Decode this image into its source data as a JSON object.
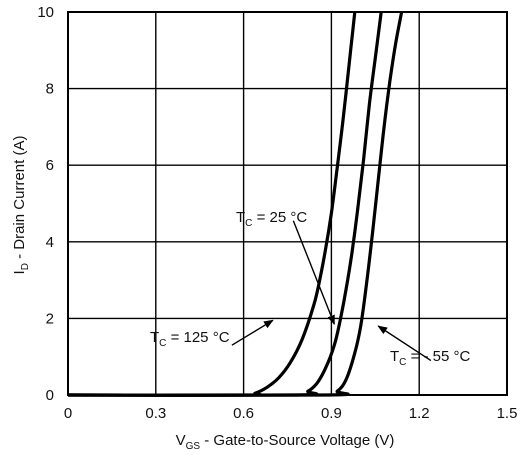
{
  "chart_data": {
    "type": "line",
    "xlabel_main": "V",
    "xlabel_sub": "GS",
    "xlabel_rest": " - Gate-to-Source Voltage (V)",
    "ylabel_main": "I",
    "ylabel_sub": "D",
    "ylabel_rest": " - Drain Current (A)",
    "xlim": [
      0,
      1.5
    ],
    "ylim": [
      0,
      10
    ],
    "x_ticks": [
      0,
      0.3,
      0.6,
      0.9,
      1.2,
      1.5
    ],
    "x_tick_labels": [
      "0",
      "0.3",
      "0.6",
      "0.9",
      "1.2",
      "1.5"
    ],
    "y_ticks": [
      0,
      2,
      4,
      6,
      8,
      10
    ],
    "y_tick_labels": [
      "0",
      "2",
      "4",
      "6",
      "8",
      "10"
    ],
    "grid": true,
    "series": [
      {
        "name": "TC = 125 °C",
        "x": [
          0,
          0.6,
          0.64,
          0.68,
          0.72,
          0.76,
          0.8,
          0.84,
          0.86,
          0.88,
          0.9,
          0.92,
          0.94,
          0.96,
          0.97,
          0.98
        ],
        "y": [
          0,
          0,
          0.05,
          0.2,
          0.45,
          0.85,
          1.45,
          2.35,
          3.0,
          3.8,
          4.75,
          5.95,
          7.2,
          8.6,
          9.3,
          10
        ]
      },
      {
        "name": "TC = 25 °C",
        "x": [
          0,
          0.78,
          0.82,
          0.85,
          0.88,
          0.91,
          0.93,
          0.95,
          0.97,
          0.99,
          1.01,
          1.03,
          1.05,
          1.07
        ],
        "y": [
          0,
          0,
          0.1,
          0.3,
          0.7,
          1.3,
          1.95,
          2.75,
          3.7,
          4.85,
          6.15,
          7.6,
          8.8,
          10
        ]
      },
      {
        "name": "TC = - 55 °C",
        "x": [
          0,
          0.88,
          0.92,
          0.95,
          0.98,
          1.0,
          1.02,
          1.04,
          1.06,
          1.08,
          1.1,
          1.12,
          1.14
        ],
        "y": [
          0,
          0,
          0.1,
          0.4,
          1.1,
          1.8,
          2.9,
          4.2,
          5.6,
          7.0,
          8.2,
          9.2,
          10
        ]
      }
    ],
    "annotations": [
      {
        "main": "T",
        "sub": "C",
        "rest": " = 25 °C"
      },
      {
        "main": "T",
        "sub": "C",
        "rest": " = 125 °C"
      },
      {
        "main": "T",
        "sub": "C",
        "rest": " = - 55 °C"
      }
    ]
  }
}
